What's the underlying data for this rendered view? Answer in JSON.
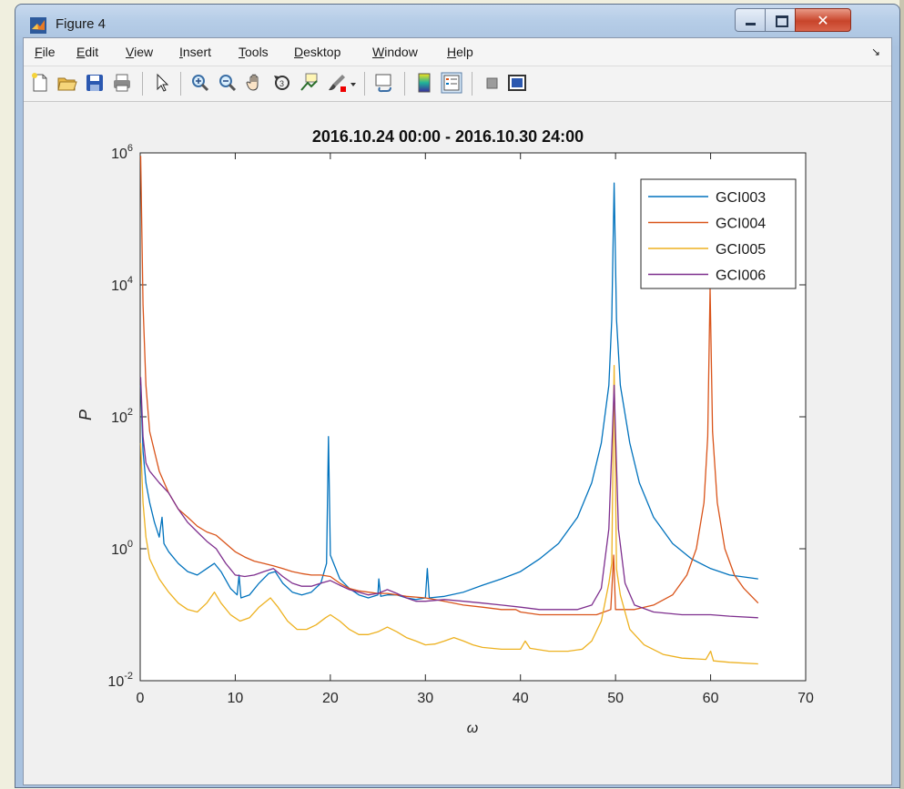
{
  "window": {
    "title": "Figure 4"
  },
  "menu": [
    {
      "label": "File",
      "key": "F",
      "rest": "ile"
    },
    {
      "label": "Edit",
      "key": "E",
      "rest": "dit"
    },
    {
      "label": "View",
      "key": "V",
      "rest": "iew"
    },
    {
      "label": "Insert",
      "key": "I",
      "rest": "nsert"
    },
    {
      "label": "Tools",
      "key": "T",
      "rest": "ools"
    },
    {
      "label": "Desktop",
      "key": "D",
      "rest": "esktop"
    },
    {
      "label": "Window",
      "key": "W",
      "rest": "indow"
    },
    {
      "label": "Help",
      "key": "H",
      "rest": "elp"
    }
  ],
  "toolbar": [
    "new-figure-icon",
    "open-file-icon",
    "save-icon",
    "print-icon",
    "pointer-icon",
    "zoom-in-icon",
    "zoom-out-icon",
    "pan-hand-icon",
    "rotate-3d-icon",
    "data-cursor-icon",
    "brush-icon",
    "link-plot-icon",
    "colorbar-icon",
    "legend-icon",
    "hide-plot-tools-icon",
    "show-plot-tools-icon"
  ],
  "chart_data": {
    "type": "line",
    "title": "2016.10.24 00:00 - 2016.10.30 24:00",
    "xlabel": "ω",
    "ylabel": "P",
    "xlim": [
      0,
      70
    ],
    "ylim": [
      0.01,
      1000000
    ],
    "yscale": "log",
    "xticks": [
      "0",
      "10",
      "20",
      "30",
      "40",
      "50",
      "60",
      "70"
    ],
    "yticks": [
      {
        "base": "10",
        "exp": "-2"
      },
      {
        "base": "10",
        "exp": "0"
      },
      {
        "base": "10",
        "exp": "2"
      },
      {
        "base": "10",
        "exp": "4"
      },
      {
        "base": "10",
        "exp": "6"
      }
    ],
    "legend_position": "top-right",
    "series": [
      {
        "name": "GCI003",
        "color": "#0072bd",
        "points": [
          [
            0.05,
            300
          ],
          [
            0.3,
            30
          ],
          [
            0.6,
            10
          ],
          [
            1,
            5
          ],
          [
            1.5,
            2.5
          ],
          [
            2,
            1.5
          ],
          [
            2.3,
            3
          ],
          [
            2.5,
            1.2
          ],
          [
            3,
            0.9
          ],
          [
            4,
            0.6
          ],
          [
            5,
            0.45
          ],
          [
            6,
            0.4
          ],
          [
            7,
            0.5
          ],
          [
            7.8,
            0.6
          ],
          [
            8.5,
            0.45
          ],
          [
            9.5,
            0.25
          ],
          [
            10.2,
            0.2
          ],
          [
            10.4,
            0.4
          ],
          [
            10.6,
            0.18
          ],
          [
            11.5,
            0.2
          ],
          [
            12.5,
            0.3
          ],
          [
            13.5,
            0.42
          ],
          [
            14.2,
            0.45
          ],
          [
            15,
            0.3
          ],
          [
            16,
            0.22
          ],
          [
            17,
            0.2
          ],
          [
            18,
            0.22
          ],
          [
            19,
            0.3
          ],
          [
            19.6,
            0.6
          ],
          [
            19.8,
            50
          ],
          [
            20,
            0.8
          ],
          [
            21,
            0.35
          ],
          [
            22,
            0.25
          ],
          [
            23,
            0.2
          ],
          [
            24,
            0.18
          ],
          [
            25,
            0.2
          ],
          [
            25.1,
            0.35
          ],
          [
            25.3,
            0.19
          ],
          [
            26,
            0.2
          ],
          [
            27,
            0.2
          ],
          [
            28,
            0.18
          ],
          [
            29,
            0.17
          ],
          [
            30,
            0.18
          ],
          [
            30.2,
            0.5
          ],
          [
            30.4,
            0.18
          ],
          [
            32,
            0.19
          ],
          [
            34,
            0.22
          ],
          [
            36,
            0.28
          ],
          [
            38,
            0.35
          ],
          [
            40,
            0.45
          ],
          [
            42,
            0.7
          ],
          [
            44,
            1.2
          ],
          [
            46,
            3
          ],
          [
            47.5,
            10
          ],
          [
            48.5,
            40
          ],
          [
            49.3,
            300
          ],
          [
            49.6,
            3000
          ],
          [
            49.85,
            350000
          ],
          [
            50.1,
            3000
          ],
          [
            50.5,
            300
          ],
          [
            51.5,
            40
          ],
          [
            52.5,
            10
          ],
          [
            54,
            3
          ],
          [
            56,
            1.2
          ],
          [
            58,
            0.7
          ],
          [
            60,
            0.5
          ],
          [
            62,
            0.4
          ],
          [
            65,
            0.35
          ]
        ]
      },
      {
        "name": "GCI004",
        "color": "#d95319",
        "points": [
          [
            0.05,
            900000
          ],
          [
            0.3,
            5000
          ],
          [
            0.6,
            300
          ],
          [
            1,
            60
          ],
          [
            2,
            15
          ],
          [
            3,
            7
          ],
          [
            4,
            4
          ],
          [
            5,
            3
          ],
          [
            6,
            2.2
          ],
          [
            7,
            1.8
          ],
          [
            8,
            1.6
          ],
          [
            9,
            1.2
          ],
          [
            10,
            0.9
          ],
          [
            11,
            0.75
          ],
          [
            12,
            0.65
          ],
          [
            13,
            0.6
          ],
          [
            14,
            0.55
          ],
          [
            15,
            0.5
          ],
          [
            16,
            0.45
          ],
          [
            17,
            0.42
          ],
          [
            18,
            0.4
          ],
          [
            19,
            0.4
          ],
          [
            20,
            0.38
          ],
          [
            21,
            0.3
          ],
          [
            22,
            0.25
          ],
          [
            23,
            0.23
          ],
          [
            24,
            0.22
          ],
          [
            25,
            0.21
          ],
          [
            26,
            0.21
          ],
          [
            27,
            0.2
          ],
          [
            28,
            0.19
          ],
          [
            30,
            0.18
          ],
          [
            32,
            0.16
          ],
          [
            34,
            0.14
          ],
          [
            36,
            0.13
          ],
          [
            38,
            0.12
          ],
          [
            39.5,
            0.12
          ],
          [
            40,
            0.11
          ],
          [
            42,
            0.1
          ],
          [
            44,
            0.1
          ],
          [
            46,
            0.1
          ],
          [
            48,
            0.1
          ],
          [
            49.5,
            0.12
          ],
          [
            49.8,
            0.8
          ],
          [
            50,
            0.12
          ],
          [
            52,
            0.12
          ],
          [
            54,
            0.14
          ],
          [
            56,
            0.2
          ],
          [
            57.5,
            0.4
          ],
          [
            58.5,
            1
          ],
          [
            59.3,
            5
          ],
          [
            59.7,
            50
          ],
          [
            59.95,
            9000
          ],
          [
            60.2,
            60
          ],
          [
            60.7,
            5
          ],
          [
            61.5,
            1
          ],
          [
            62.5,
            0.4
          ],
          [
            63.5,
            0.25
          ],
          [
            65,
            0.15
          ]
        ]
      },
      {
        "name": "GCI005",
        "color": "#edb120",
        "points": [
          [
            0.05,
            40
          ],
          [
            0.3,
            5
          ],
          [
            0.6,
            1.5
          ],
          [
            1,
            0.7
          ],
          [
            2,
            0.35
          ],
          [
            3,
            0.22
          ],
          [
            4,
            0.15
          ],
          [
            5,
            0.12
          ],
          [
            6,
            0.11
          ],
          [
            7,
            0.15
          ],
          [
            7.8,
            0.22
          ],
          [
            8.5,
            0.15
          ],
          [
            9.5,
            0.1
          ],
          [
            10.5,
            0.08
          ],
          [
            11.5,
            0.09
          ],
          [
            12.5,
            0.13
          ],
          [
            13.7,
            0.18
          ],
          [
            14.5,
            0.13
          ],
          [
            15.5,
            0.08
          ],
          [
            16.5,
            0.06
          ],
          [
            17.5,
            0.06
          ],
          [
            18.5,
            0.07
          ],
          [
            19.5,
            0.09
          ],
          [
            20,
            0.1
          ],
          [
            21,
            0.08
          ],
          [
            22,
            0.06
          ],
          [
            23,
            0.05
          ],
          [
            24,
            0.05
          ],
          [
            25,
            0.055
          ],
          [
            26,
            0.065
          ],
          [
            27,
            0.055
          ],
          [
            28,
            0.045
          ],
          [
            29,
            0.04
          ],
          [
            30,
            0.035
          ],
          [
            31,
            0.036
          ],
          [
            32,
            0.04
          ],
          [
            33,
            0.045
          ],
          [
            34,
            0.04
          ],
          [
            35,
            0.035
          ],
          [
            36,
            0.032
          ],
          [
            38,
            0.03
          ],
          [
            40,
            0.03
          ],
          [
            40.5,
            0.04
          ],
          [
            41,
            0.031
          ],
          [
            43,
            0.028
          ],
          [
            45,
            0.028
          ],
          [
            46.5,
            0.03
          ],
          [
            47.5,
            0.04
          ],
          [
            48.5,
            0.08
          ],
          [
            49.3,
            0.3
          ],
          [
            49.6,
            0.6
          ],
          [
            49.85,
            600
          ],
          [
            50.1,
            0.5
          ],
          [
            50.5,
            0.2
          ],
          [
            51.5,
            0.06
          ],
          [
            53,
            0.035
          ],
          [
            55,
            0.025
          ],
          [
            57,
            0.022
          ],
          [
            59.5,
            0.021
          ],
          [
            60,
            0.028
          ],
          [
            60.3,
            0.02
          ],
          [
            62,
            0.019
          ],
          [
            65,
            0.018
          ]
        ]
      },
      {
        "name": "GCI006",
        "color": "#7e2f8e",
        "points": [
          [
            0.05,
            400
          ],
          [
            0.3,
            50
          ],
          [
            0.6,
            20
          ],
          [
            1,
            15
          ],
          [
            2,
            10
          ],
          [
            3,
            7
          ],
          [
            4,
            4
          ],
          [
            5,
            2.5
          ],
          [
            6,
            1.8
          ],
          [
            7,
            1.3
          ],
          [
            8,
            1
          ],
          [
            9,
            0.6
          ],
          [
            10,
            0.4
          ],
          [
            11,
            0.38
          ],
          [
            12,
            0.4
          ],
          [
            13,
            0.45
          ],
          [
            14,
            0.5
          ],
          [
            15,
            0.38
          ],
          [
            16,
            0.3
          ],
          [
            17,
            0.27
          ],
          [
            18,
            0.27
          ],
          [
            19,
            0.3
          ],
          [
            20,
            0.33
          ],
          [
            21,
            0.28
          ],
          [
            22,
            0.24
          ],
          [
            23,
            0.22
          ],
          [
            24,
            0.2
          ],
          [
            25,
            0.21
          ],
          [
            26,
            0.24
          ],
          [
            27,
            0.21
          ],
          [
            28,
            0.18
          ],
          [
            29,
            0.16
          ],
          [
            30,
            0.16
          ],
          [
            32,
            0.17
          ],
          [
            34,
            0.16
          ],
          [
            36,
            0.15
          ],
          [
            38,
            0.14
          ],
          [
            40,
            0.13
          ],
          [
            42,
            0.12
          ],
          [
            44,
            0.12
          ],
          [
            46,
            0.12
          ],
          [
            47.5,
            0.14
          ],
          [
            48.5,
            0.25
          ],
          [
            49.3,
            2
          ],
          [
            49.85,
            300
          ],
          [
            50.3,
            2
          ],
          [
            51,
            0.3
          ],
          [
            52,
            0.14
          ],
          [
            54,
            0.11
          ],
          [
            57,
            0.1
          ],
          [
            60,
            0.1
          ],
          [
            62,
            0.095
          ],
          [
            65,
            0.09
          ]
        ]
      }
    ]
  }
}
